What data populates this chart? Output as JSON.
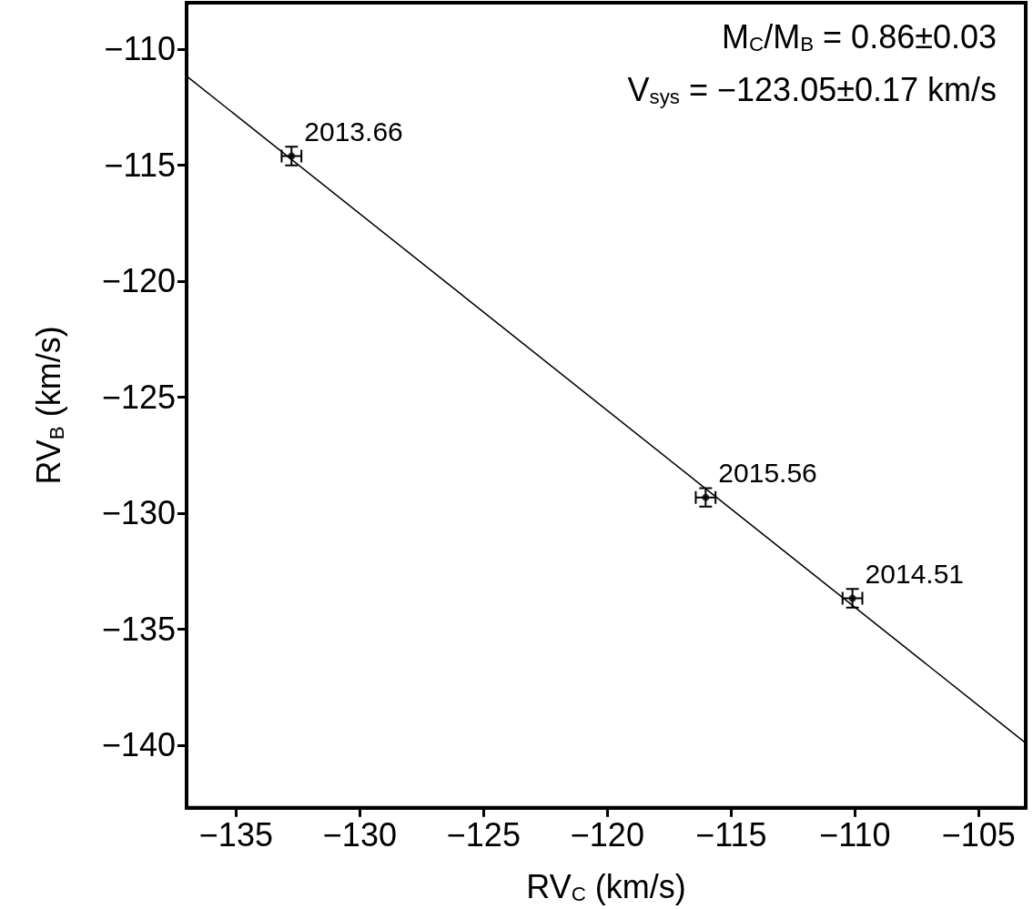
{
  "chart_data": {
    "type": "scatter",
    "xlabel": "RV$_{C}$ (km/s)",
    "ylabel": "RV$_{B}$ (km/s)",
    "xlim": [
      -137,
      -103.1
    ],
    "ylim": [
      -142.7,
      -108
    ],
    "xticks": [
      -135,
      -130,
      -125,
      -120,
      -115,
      -110,
      -105
    ],
    "yticks": [
      -140,
      -135,
      -130,
      -125,
      -120,
      -115,
      -110
    ],
    "annotations": [
      "M$_{C}$/M$_{B}$ = 0.86±0.03",
      "V$_{sys}$ = −123.05±0.17 km/s",
      {
        "text": "2013.66",
        "x": -132.76,
        "y": -114.61
      },
      {
        "text": "2015.56",
        "x": -116.03,
        "y": -129.32
      },
      {
        "text": "2014.51",
        "x": -110.1,
        "y": -133.67
      }
    ],
    "series": [
      {
        "color": "#000000",
        "marker": "circle",
        "x": [
          -132.76,
          -116.03,
          -110.1
        ],
        "values": [
          -114.61,
          -129.32,
          -133.67
        ],
        "errors": [
          0.4,
          0.4,
          0.4
        ],
        "xerrors": [
          0.4,
          0.4,
          0.4
        ]
      },
      {
        "type": "line",
        "color": "#000000",
        "line_style": "solid",
        "marker": "none",
        "x": [
          -137,
          -103.1
        ],
        "values": [
          -111.16,
          -139.91
        ]
      }
    ]
  }
}
